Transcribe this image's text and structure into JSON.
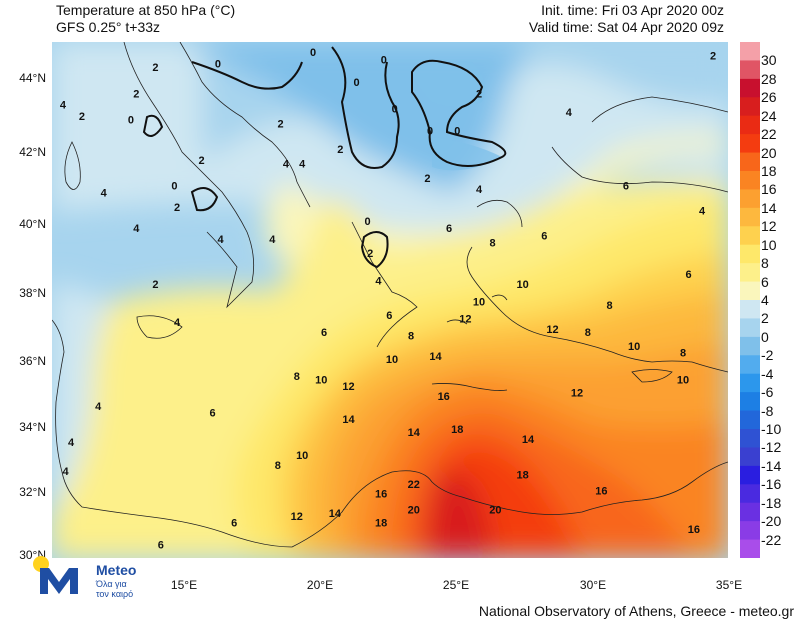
{
  "header": {
    "title_line1": "Temperature at 850 hPa (°C)",
    "title_line2": "GFS 0.25° t+33z",
    "init_time": "Init. time: Fri 03 Apr 2020 00z",
    "valid_time": "Valid time: Sat 04 Apr 2020 09z"
  },
  "axes": {
    "lat_labels": [
      "44°N",
      "42°N",
      "40°N",
      "38°N",
      "36°N",
      "34°N",
      "32°N",
      "30°N"
    ],
    "lon_labels": [
      "15°E",
      "20°E",
      "25°E",
      "30°E",
      "35°E"
    ]
  },
  "colorbar": {
    "labels": [
      "30",
      "28",
      "26",
      "24",
      "22",
      "20",
      "18",
      "16",
      "14",
      "12",
      "10",
      "8",
      "6",
      "4",
      "2",
      "0",
      "-2",
      "-4",
      "-6",
      "-8",
      "-10",
      "-12",
      "-14",
      "-16",
      "-18",
      "-20",
      "-22"
    ],
    "colors": [
      "#f4a0a8",
      "#e05565",
      "#c8102e",
      "#d81e1e",
      "#ea2b14",
      "#f43c10",
      "#f8661a",
      "#fa8422",
      "#fca030",
      "#fdb83e",
      "#fed14e",
      "#fee86a",
      "#fdf08a",
      "#faf6bc",
      "#cfe7f2",
      "#a7d4ee",
      "#7fc0ea",
      "#52acee",
      "#2c97ec",
      "#1d7fe4",
      "#2267da",
      "#2f52d3",
      "#3a40d0",
      "#2a1ee0",
      "#4a2ae0",
      "#6a30e2",
      "#8a3ce6",
      "#a94dea"
    ]
  },
  "map_labels": [
    {
      "text": "2",
      "lon": 14.0,
      "lat": 44.2
    },
    {
      "text": "2",
      "lon": 13.3,
      "lat": 43.5
    },
    {
      "text": "2",
      "lon": 11.3,
      "lat": 42.9
    },
    {
      "text": "4",
      "lon": 10.6,
      "lat": 43.2
    },
    {
      "text": "0",
      "lon": 13.1,
      "lat": 42.8
    },
    {
      "text": "0",
      "lon": 16.3,
      "lat": 44.3
    },
    {
      "text": "0",
      "lon": 19.8,
      "lat": 44.6
    },
    {
      "text": "0",
      "lon": 21.4,
      "lat": 43.8
    },
    {
      "text": "0",
      "lon": 22.4,
      "lat": 44.4
    },
    {
      "text": "0",
      "lon": 22.8,
      "lat": 43.1
    },
    {
      "text": "0",
      "lon": 24.1,
      "lat": 42.5
    },
    {
      "text": "0",
      "lon": 25.1,
      "lat": 42.5
    },
    {
      "text": "0",
      "lon": 14.7,
      "lat": 41.0
    },
    {
      "text": "0",
      "lon": 21.8,
      "lat": 40.0
    },
    {
      "text": "2",
      "lon": 25.9,
      "lat": 43.5
    },
    {
      "text": "2",
      "lon": 34.5,
      "lat": 44.5
    },
    {
      "text": "2",
      "lon": 18.6,
      "lat": 42.7
    },
    {
      "text": "2",
      "lon": 20.8,
      "lat": 42.0
    },
    {
      "text": "2",
      "lon": 15.7,
      "lat": 41.7
    },
    {
      "text": "2",
      "lon": 14.8,
      "lat": 40.4
    },
    {
      "text": "2",
      "lon": 24.0,
      "lat": 41.2
    },
    {
      "text": "2",
      "lon": 21.9,
      "lat": 39.1
    },
    {
      "text": "2",
      "lon": 14.0,
      "lat": 38.2
    },
    {
      "text": "4",
      "lon": 29.2,
      "lat": 43.0
    },
    {
      "text": "4",
      "lon": 18.8,
      "lat": 41.6
    },
    {
      "text": "4",
      "lon": 19.4,
      "lat": 41.6
    },
    {
      "text": "4",
      "lon": 12.1,
      "lat": 40.8
    },
    {
      "text": "4",
      "lon": 16.4,
      "lat": 39.5
    },
    {
      "text": "4",
      "lon": 13.3,
      "lat": 39.8
    },
    {
      "text": "4",
      "lon": 18.3,
      "lat": 39.5
    },
    {
      "text": "4",
      "lon": 25.9,
      "lat": 40.9
    },
    {
      "text": "4",
      "lon": 34.1,
      "lat": 40.3
    },
    {
      "text": "4",
      "lon": 22.2,
      "lat": 38.3
    },
    {
      "text": "4",
      "lon": 14.8,
      "lat": 37.1
    },
    {
      "text": "4",
      "lon": 11.9,
      "lat": 34.6
    },
    {
      "text": "4",
      "lon": 10.9,
      "lat": 33.5
    },
    {
      "text": "4",
      "lon": 10.7,
      "lat": 32.6
    },
    {
      "text": "6",
      "lon": 31.3,
      "lat": 41.0
    },
    {
      "text": "6",
      "lon": 24.8,
      "lat": 39.8
    },
    {
      "text": "6",
      "lon": 28.3,
      "lat": 39.6
    },
    {
      "text": "6",
      "lon": 33.6,
      "lat": 38.5
    },
    {
      "text": "6",
      "lon": 22.6,
      "lat": 37.3
    },
    {
      "text": "6",
      "lon": 20.2,
      "lat": 36.8
    },
    {
      "text": "6",
      "lon": 16.1,
      "lat": 34.4
    },
    {
      "text": "6",
      "lon": 16.9,
      "lat": 31.0
    },
    {
      "text": "6",
      "lon": 14.2,
      "lat": 30.3
    },
    {
      "text": "8",
      "lon": 26.4,
      "lat": 39.4
    },
    {
      "text": "8",
      "lon": 30.7,
      "lat": 37.6
    },
    {
      "text": "8",
      "lon": 29.9,
      "lat": 36.8
    },
    {
      "text": "8",
      "lon": 23.4,
      "lat": 36.7
    },
    {
      "text": "8",
      "lon": 33.4,
      "lat": 36.2
    },
    {
      "text": "8",
      "lon": 19.2,
      "lat": 35.5
    },
    {
      "text": "8",
      "lon": 18.5,
      "lat": 32.8
    },
    {
      "text": "10",
      "lon": 27.5,
      "lat": 38.2
    },
    {
      "text": "10",
      "lon": 25.9,
      "lat": 37.7
    },
    {
      "text": "10",
      "lon": 31.6,
      "lat": 36.4
    },
    {
      "text": "10",
      "lon": 22.7,
      "lat": 36.0
    },
    {
      "text": "10",
      "lon": 20.1,
      "lat": 35.4
    },
    {
      "text": "10",
      "lon": 33.4,
      "lat": 35.4
    },
    {
      "text": "10",
      "lon": 19.4,
      "lat": 33.1
    },
    {
      "text": "12",
      "lon": 25.4,
      "lat": 37.2
    },
    {
      "text": "12",
      "lon": 28.6,
      "lat": 36.9
    },
    {
      "text": "12",
      "lon": 21.1,
      "lat": 35.2
    },
    {
      "text": "12",
      "lon": 29.5,
      "lat": 35.0
    },
    {
      "text": "12",
      "lon": 19.2,
      "lat": 31.2
    },
    {
      "text": "14",
      "lon": 24.3,
      "lat": 36.1
    },
    {
      "text": "14",
      "lon": 21.1,
      "lat": 34.2
    },
    {
      "text": "14",
      "lon": 23.5,
      "lat": 33.8
    },
    {
      "text": "14",
      "lon": 27.7,
      "lat": 33.6
    },
    {
      "text": "14",
      "lon": 20.6,
      "lat": 31.3
    },
    {
      "text": "16",
      "lon": 24.6,
      "lat": 34.9
    },
    {
      "text": "16",
      "lon": 30.4,
      "lat": 32.0
    },
    {
      "text": "16",
      "lon": 22.3,
      "lat": 31.9
    },
    {
      "text": "16",
      "lon": 33.8,
      "lat": 30.8
    },
    {
      "text": "18",
      "lon": 25.1,
      "lat": 33.9
    },
    {
      "text": "18",
      "lon": 27.5,
      "lat": 32.5
    },
    {
      "text": "18",
      "lon": 22.3,
      "lat": 31.0
    },
    {
      "text": "20",
      "lon": 23.5,
      "lat": 31.4
    },
    {
      "text": "20",
      "lon": 26.5,
      "lat": 31.4
    },
    {
      "text": "22",
      "lon": 23.5,
      "lat": 32.2
    }
  ],
  "credit": "National Observatory of Athens, Greece - meteo.gr",
  "logo": {
    "name": "Meteo",
    "tagline_1": "Όλα για",
    "tagline_2": "τον καιρό"
  }
}
